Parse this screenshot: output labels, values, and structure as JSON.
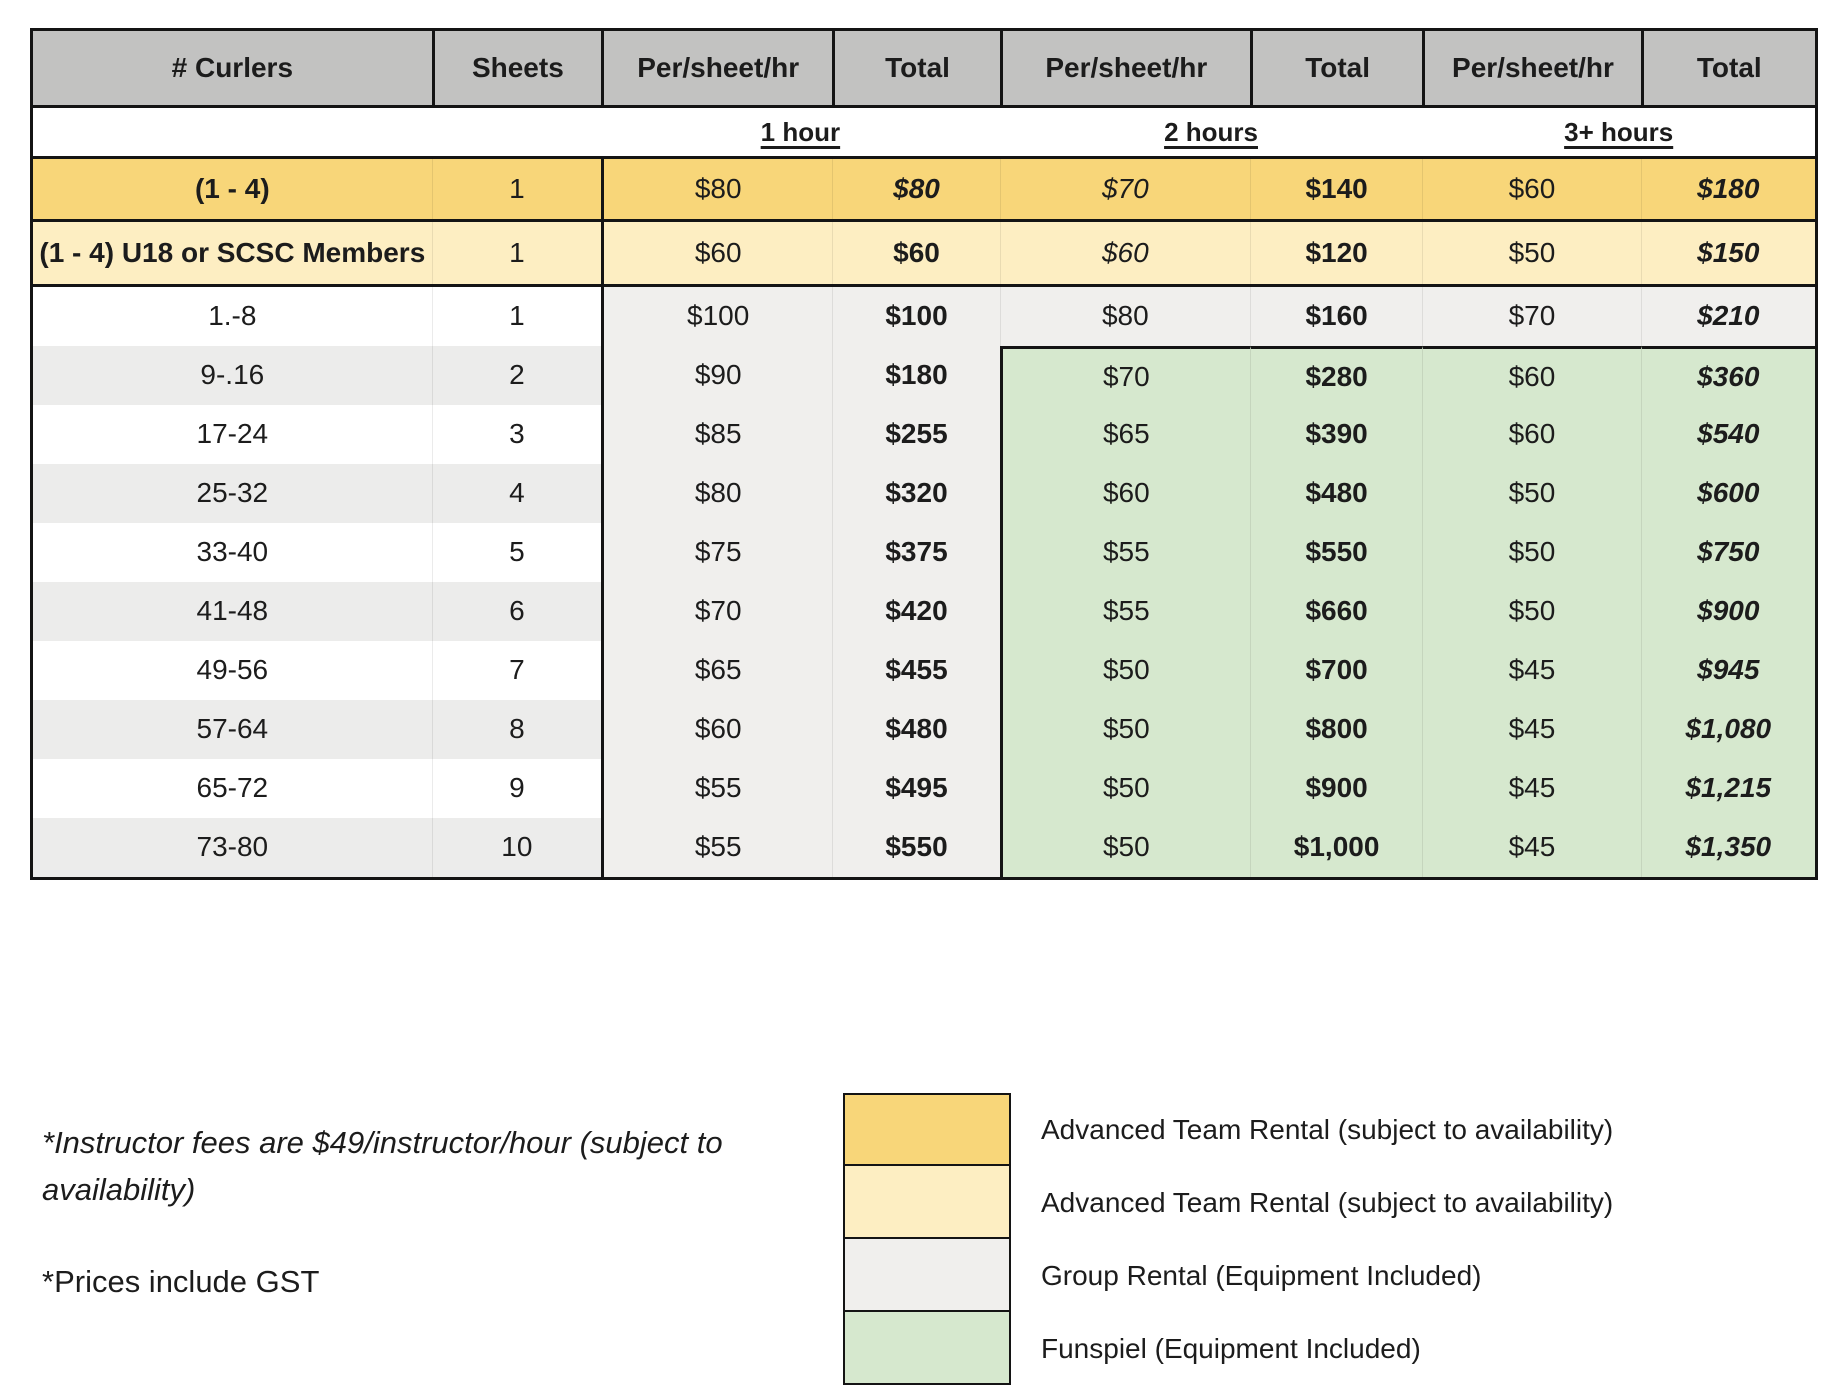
{
  "header": {
    "curlers": "# Curlers",
    "sheets": "Sheets",
    "per_sheet_hr": "Per/sheet/hr",
    "total": "Total"
  },
  "durations": [
    "1 hour",
    "2 hours",
    "3+ hours"
  ],
  "rows": [
    {
      "curlers": "(1 - 4)",
      "sheets": "1",
      "per_1h": "$80",
      "total_1h": "$80",
      "per_2h": "$70",
      "total_2h": "$140",
      "per_3h": "$60",
      "total_3h": "$180"
    },
    {
      "curlers": "(1 - 4) U18 or SCSC Members",
      "sheets": "1",
      "per_1h": "$60",
      "total_1h": "$60",
      "per_2h": "$60",
      "total_2h": "$120",
      "per_3h": "$50",
      "total_3h": "$150"
    },
    {
      "curlers": "1.-8",
      "sheets": "1",
      "per_1h": "$100",
      "total_1h": "$100",
      "per_2h": "$80",
      "total_2h": "$160",
      "per_3h": "$70",
      "total_3h": "$210"
    },
    {
      "curlers": "9-.16",
      "sheets": "2",
      "per_1h": "$90",
      "total_1h": "$180",
      "per_2h": "$70",
      "total_2h": "$280",
      "per_3h": "$60",
      "total_3h": "$360"
    },
    {
      "curlers": "17-24",
      "sheets": "3",
      "per_1h": "$85",
      "total_1h": "$255",
      "per_2h": "$65",
      "total_2h": "$390",
      "per_3h": "$60",
      "total_3h": "$540"
    },
    {
      "curlers": "25-32",
      "sheets": "4",
      "per_1h": "$80",
      "total_1h": "$320",
      "per_2h": "$60",
      "total_2h": "$480",
      "per_3h": "$50",
      "total_3h": "$600"
    },
    {
      "curlers": "33-40",
      "sheets": "5",
      "per_1h": "$75",
      "total_1h": "$375",
      "per_2h": "$55",
      "total_2h": "$550",
      "per_3h": "$50",
      "total_3h": "$750"
    },
    {
      "curlers": "41-48",
      "sheets": "6",
      "per_1h": "$70",
      "total_1h": "$420",
      "per_2h": "$55",
      "total_2h": "$660",
      "per_3h": "$50",
      "total_3h": "$900"
    },
    {
      "curlers": "49-56",
      "sheets": "7",
      "per_1h": "$65",
      "total_1h": "$455",
      "per_2h": "$50",
      "total_2h": "$700",
      "per_3h": "$45",
      "total_3h": "$945"
    },
    {
      "curlers": "57-64",
      "sheets": "8",
      "per_1h": "$60",
      "total_1h": "$480",
      "per_2h": "$50",
      "total_2h": "$800",
      "per_3h": "$45",
      "total_3h": "$1,080"
    },
    {
      "curlers": "65-72",
      "sheets": "9",
      "per_1h": "$55",
      "total_1h": "$495",
      "per_2h": "$50",
      "total_2h": "$900",
      "per_3h": "$45",
      "total_3h": "$1,215"
    },
    {
      "curlers": "73-80",
      "sheets": "10",
      "per_1h": "$55",
      "total_1h": "$550",
      "per_2h": "$50",
      "total_2h": "$1,000",
      "per_3h": "$45",
      "total_3h": "$1,350"
    }
  ],
  "footnotes": {
    "instructor": "*Instructor fees are $49/instructor/hour (subject to availability)",
    "gst": "*Prices include GST"
  },
  "legend": [
    {
      "label": "Advanced Team Rental (subject to availability)",
      "color": "#f8d679"
    },
    {
      "label": "Advanced Team Rental (subject to availability)",
      "color": "#fdeec2"
    },
    {
      "label": "Group Rental (Equipment Included)",
      "color": "#f0efed"
    },
    {
      "label": "Funspiel (Equipment Included)",
      "color": "#d6e8ce"
    }
  ],
  "colors": {
    "header_bg": "#c2c2c1",
    "advanced": "#f8d679",
    "advanced_u18": "#fdeec2",
    "group": "#f0efed",
    "funspiel": "#d6e8ce",
    "stripe": "#ececeb",
    "border": "#141414"
  }
}
